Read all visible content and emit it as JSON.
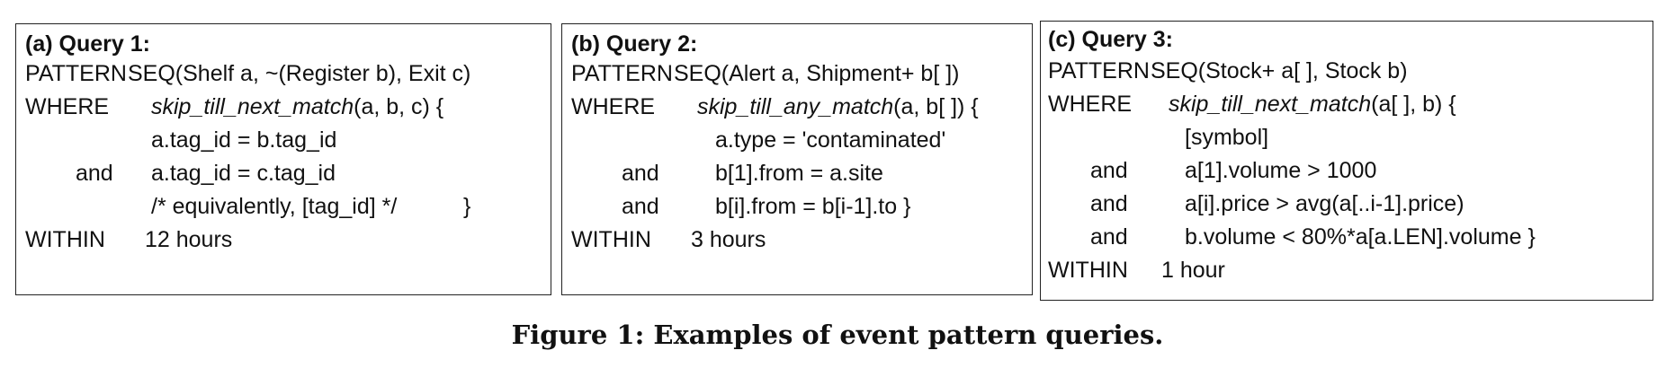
{
  "panels": {
    "a": {
      "title": "(a) Query 1:",
      "pattern_kw": "PATTERN",
      "pattern_text": "SEQ(Shelf a, ~(Register b), Exit c)",
      "where_kw": "WHERE",
      "where_fn": "skip_till_next_match",
      "where_args": "(a, b, c) {",
      "cond1": "a.tag_id = b.tag_id",
      "and_kw": "and",
      "cond2": "a.tag_id = c.tag_id",
      "cond3": "/* equivalently, [tag_id] */",
      "close": "}",
      "within_kw": "WITHIN",
      "within_val": "12 hours"
    },
    "b": {
      "title": "(b) Query 2:",
      "pattern_kw": "PATTERN",
      "pattern_text": "SEQ(Alert a, Shipment+ b[ ])",
      "where_kw": "WHERE",
      "where_fn": "skip_till_any_match",
      "where_args": "(a, b[ ]) {",
      "cond1": "a.type = 'contaminated'",
      "and_kw": "and",
      "cond2": "b[1].from = a.site",
      "cond3": "b[i].from = b[i-1].to }",
      "within_kw": "WITHIN",
      "within_val": "3 hours"
    },
    "c": {
      "title": "(c) Query 3:",
      "pattern_kw": "PATTERN",
      "pattern_text": "SEQ(Stock+ a[ ], Stock b)",
      "where_kw": "WHERE",
      "where_fn": "skip_till_next_match",
      "where_args": "(a[ ], b) {",
      "cond1": "[symbol]",
      "and_kw": "and",
      "cond2": "a[1].volume > 1000",
      "cond3": "a[i].price > avg(a[..i-1].price)",
      "cond4": "b.volume < 80%*a[a.LEN].volume }",
      "within_kw": "WITHIN",
      "within_val": "1 hour"
    }
  },
  "caption": "Figure 1: Examples of event pattern queries."
}
